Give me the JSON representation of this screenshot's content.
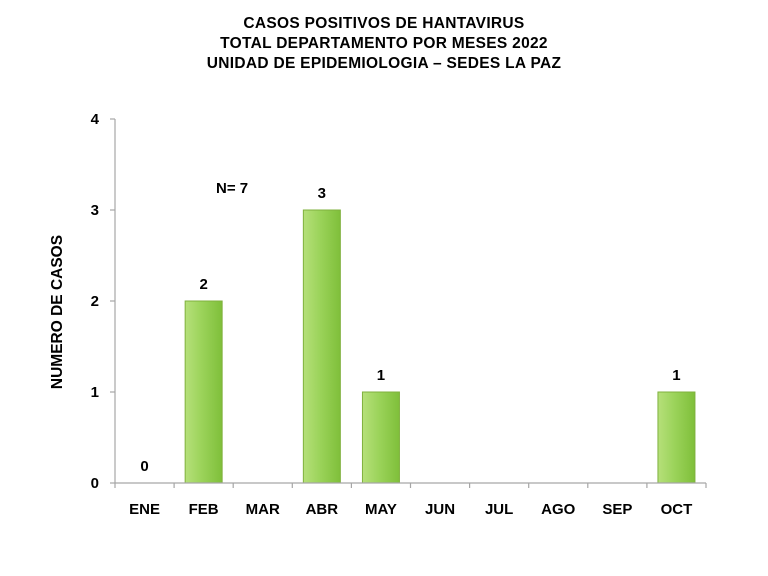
{
  "chart_data": {
    "type": "bar",
    "title": [
      "CASOS  POSITIVOS DE HANTAVIRUS",
      "TOTAL DEPARTAMENTO POR MESES 2022",
      "UNIDAD DE EPIDEMIOLOGIA – SEDES LA PAZ"
    ],
    "xlabel": "",
    "ylabel": "NUMERO DE CASOS",
    "categories": [
      "ENE",
      "FEB",
      "MAR",
      "ABR",
      "MAY",
      "JUN",
      "JUL",
      "AGO",
      "SEP",
      "OCT"
    ],
    "values": [
      0,
      2,
      null,
      3,
      1,
      null,
      null,
      null,
      null,
      1
    ],
    "data_labels": [
      "0",
      "2",
      "",
      "3",
      "1",
      "",
      "",
      "",
      "",
      "1"
    ],
    "ylim": [
      0,
      4
    ],
    "yticks": [
      0,
      1,
      2,
      3,
      4
    ],
    "grid": false,
    "legend": "none",
    "annotation": "N= 7",
    "bar_color": "#92d050",
    "bar_edge_color": "#7fb13d"
  }
}
